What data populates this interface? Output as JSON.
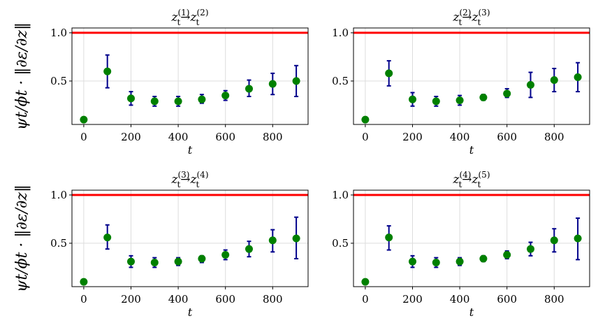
{
  "chart_data": [
    {
      "type": "scatter",
      "title": {
        "base": "z",
        "sub": "t",
        "from": "(1)",
        "arrow": "→",
        "to": "(2)"
      },
      "xlabel": "t",
      "ylabel": "ψt/ϕt · ‖∂ε/∂z‖",
      "xlim": [
        -50,
        950
      ],
      "ylim": [
        0.05,
        1.05
      ],
      "xticks": [
        0,
        200,
        400,
        600,
        800
      ],
      "yticks": [
        0.5,
        1.0
      ],
      "xtick_labels": [
        "0",
        "200",
        "400",
        "600",
        "800"
      ],
      "ytick_labels": [
        "0.5",
        "1.0"
      ],
      "reference_line": 1.0,
      "x": [
        0,
        100,
        200,
        300,
        400,
        500,
        600,
        700,
        800,
        900
      ],
      "y": [
        0.1,
        0.6,
        0.32,
        0.29,
        0.29,
        0.31,
        0.35,
        0.42,
        0.47,
        0.5
      ],
      "err_low": [
        0.1,
        0.43,
        0.25,
        0.24,
        0.24,
        0.27,
        0.3,
        0.34,
        0.36,
        0.34
      ],
      "err_high": [
        0.1,
        0.77,
        0.39,
        0.34,
        0.34,
        0.36,
        0.4,
        0.51,
        0.58,
        0.66
      ]
    },
    {
      "type": "scatter",
      "title": {
        "base": "z",
        "sub": "t",
        "from": "(2)",
        "arrow": "→",
        "to": "(3)"
      },
      "xlabel": "t",
      "ylabel": "",
      "xlim": [
        -50,
        950
      ],
      "ylim": [
        0.05,
        1.05
      ],
      "xticks": [
        0,
        200,
        400,
        600,
        800
      ],
      "yticks": [
        0.5,
        1.0
      ],
      "xtick_labels": [
        "0",
        "200",
        "400",
        "600",
        "800"
      ],
      "ytick_labels": [
        "0.5",
        "1.0"
      ],
      "reference_line": 1.0,
      "x": [
        0,
        100,
        200,
        300,
        400,
        500,
        600,
        700,
        800,
        900
      ],
      "y": [
        0.1,
        0.58,
        0.31,
        0.29,
        0.3,
        0.33,
        0.37,
        0.46,
        0.51,
        0.54
      ],
      "err_low": [
        0.1,
        0.45,
        0.24,
        0.24,
        0.25,
        0.3,
        0.33,
        0.33,
        0.39,
        0.39
      ],
      "err_high": [
        0.1,
        0.71,
        0.38,
        0.34,
        0.35,
        0.36,
        0.42,
        0.59,
        0.63,
        0.69
      ]
    },
    {
      "type": "scatter",
      "title": {
        "base": "z",
        "sub": "t",
        "from": "(3)",
        "arrow": "→",
        "to": "(4)"
      },
      "xlabel": "t",
      "ylabel": "ψt/ϕt · ‖∂ε/∂z‖",
      "xlim": [
        -50,
        950
      ],
      "ylim": [
        0.05,
        1.05
      ],
      "xticks": [
        0,
        200,
        400,
        600,
        800
      ],
      "yticks": [
        0.5,
        1.0
      ],
      "xtick_labels": [
        "0",
        "200",
        "400",
        "600",
        "800"
      ],
      "ytick_labels": [
        "0.5",
        "1.0"
      ],
      "reference_line": 1.0,
      "x": [
        0,
        100,
        200,
        300,
        400,
        500,
        600,
        700,
        800,
        900
      ],
      "y": [
        0.1,
        0.56,
        0.31,
        0.3,
        0.31,
        0.34,
        0.38,
        0.44,
        0.53,
        0.55
      ],
      "err_low": [
        0.1,
        0.44,
        0.25,
        0.25,
        0.27,
        0.3,
        0.33,
        0.36,
        0.41,
        0.34
      ],
      "err_high": [
        0.1,
        0.69,
        0.37,
        0.35,
        0.35,
        0.37,
        0.43,
        0.52,
        0.64,
        0.77
      ]
    },
    {
      "type": "scatter",
      "title": {
        "base": "z",
        "sub": "t",
        "from": "(4)",
        "arrow": "→",
        "to": "(5)"
      },
      "xlabel": "t",
      "ylabel": "",
      "xlim": [
        -50,
        950
      ],
      "ylim": [
        0.05,
        1.05
      ],
      "xticks": [
        0,
        200,
        400,
        600,
        800
      ],
      "yticks": [
        0.5,
        1.0
      ],
      "xtick_labels": [
        "0",
        "200",
        "400",
        "600",
        "800"
      ],
      "ytick_labels": [
        "0.5",
        "1.0"
      ],
      "reference_line": 1.0,
      "x": [
        0,
        100,
        200,
        300,
        400,
        500,
        600,
        700,
        800,
        900
      ],
      "y": [
        0.1,
        0.56,
        0.31,
        0.3,
        0.31,
        0.34,
        0.38,
        0.44,
        0.53,
        0.55
      ],
      "err_low": [
        0.1,
        0.43,
        0.25,
        0.25,
        0.27,
        0.31,
        0.34,
        0.37,
        0.41,
        0.33
      ],
      "err_high": [
        0.1,
        0.68,
        0.37,
        0.35,
        0.35,
        0.37,
        0.42,
        0.51,
        0.65,
        0.76
      ]
    }
  ],
  "colors": {
    "marker": "#008000",
    "errorbar": "#00008b",
    "reference_line": "#ff0000",
    "grid": "#dddddd",
    "axes": "#000000"
  }
}
